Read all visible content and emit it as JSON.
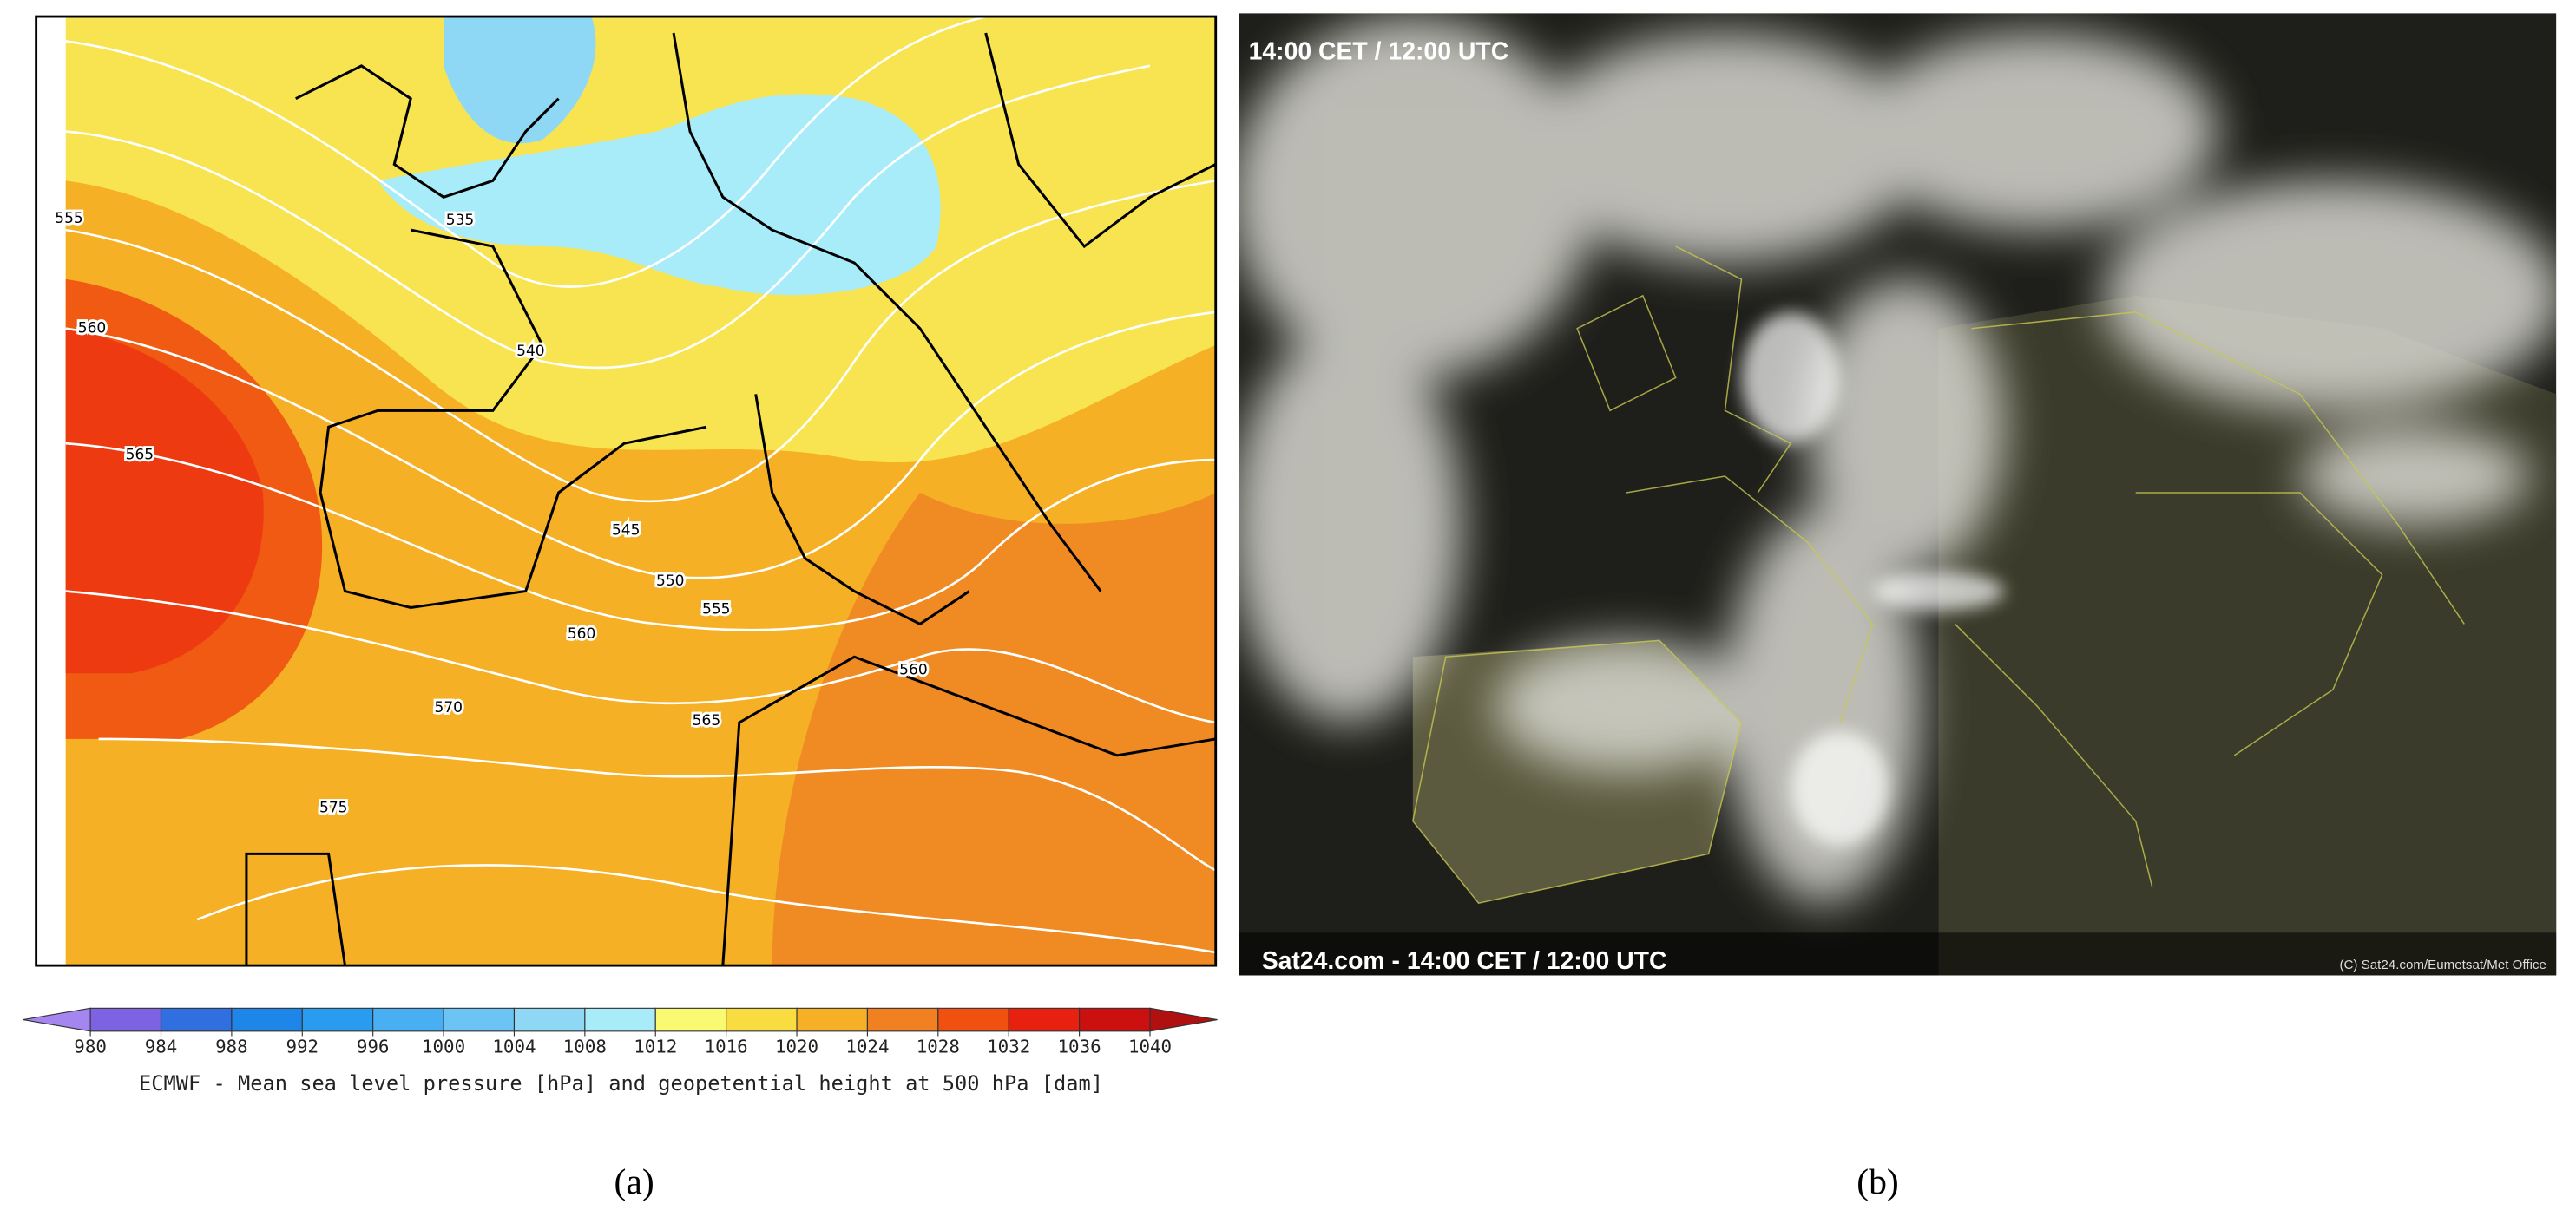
{
  "panel_a": {
    "contour_labels": [
      555,
      560,
      565,
      535,
      540,
      545,
      550,
      555,
      560,
      570,
      575,
      565,
      560
    ],
    "colorbar": {
      "ticks": [
        980,
        984,
        988,
        992,
        996,
        1000,
        1004,
        1008,
        1012,
        1016,
        1020,
        1024,
        1028,
        1032,
        1036,
        1040
      ],
      "colors": [
        "#7d62e2",
        "#2f6fe0",
        "#1e86e8",
        "#2a9cf0",
        "#48b0f2",
        "#6cc4f4",
        "#8ed8f6",
        "#a8ecfa",
        "#fafa72",
        "#f8dc40",
        "#f5b025",
        "#f08020",
        "#f05010",
        "#e82010",
        "#cc1010"
      ],
      "under_color": "#a585f0",
      "over_color": "#b01010"
    },
    "caption": "ECMWF - Mean sea level pressure [hPa] and geopetential height at 500 hPa [dam]",
    "label": "(a)"
  },
  "panel_b": {
    "top_text": "14:00 CET / 12:00 UTC",
    "bottom_text": "Sat24.com - 14:00 CET / 12:00 UTC",
    "credit": "(C) Sat24.com/Eumetsat/Met Office",
    "label": "(b)"
  }
}
